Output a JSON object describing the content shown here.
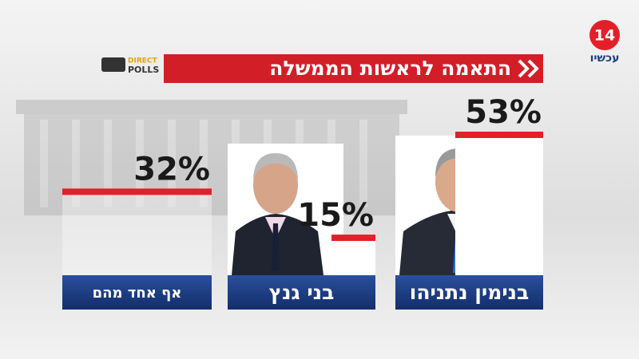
{
  "chart_data": {
    "type": "bar",
    "title": "התאמה לראשות הממשלה",
    "categories": [
      "בנימין נתניהו",
      "בני גנץ",
      "אף אחד מהם"
    ],
    "values": [
      53,
      15,
      32
    ],
    "value_labels": [
      "53%",
      "15%",
      "32%"
    ],
    "bar_color": "#ffffff",
    "accent_color": "#e3202a",
    "plate_color": "#1b3d86"
  },
  "branding": {
    "channel_number": "14",
    "channel_name": "עכשיו",
    "pollster_top": "DIRECT",
    "pollster_bottom": "POLLS"
  }
}
